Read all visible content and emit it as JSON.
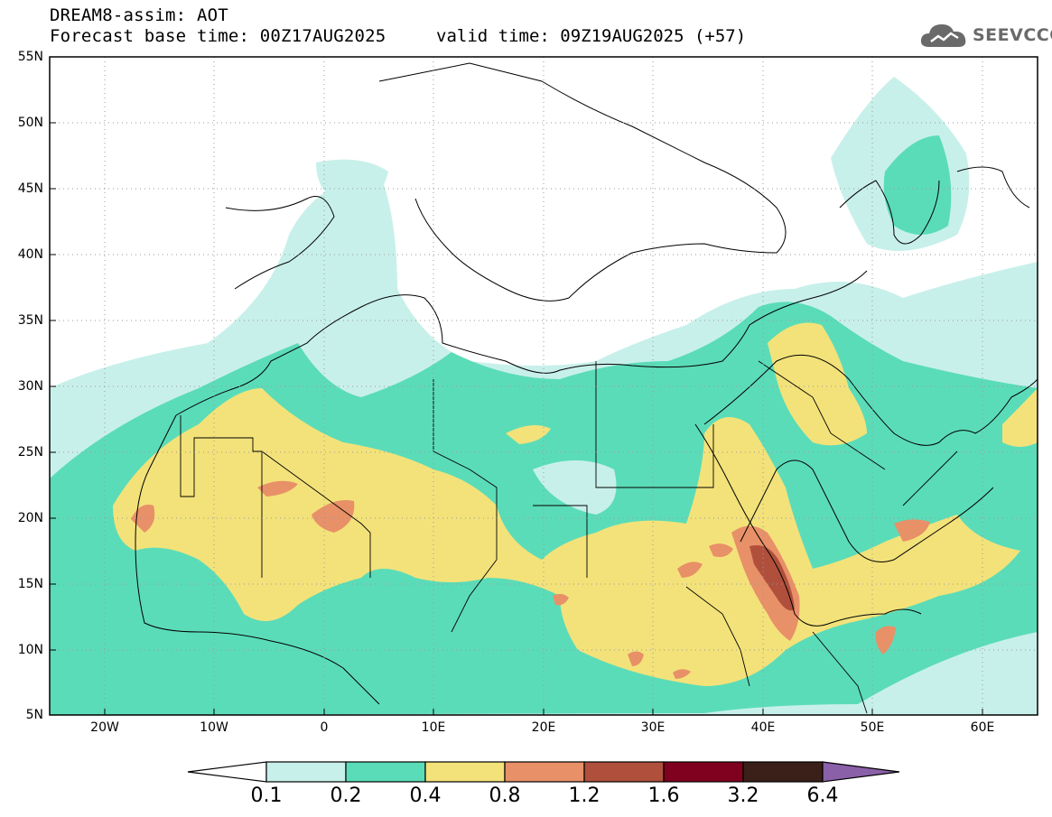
{
  "header": {
    "title": "DREAM8-assim: AOT",
    "base_time": "Forecast base time: 00Z17AUG2025",
    "valid_time": "valid time: 09Z19AUG2025 (+57)",
    "logo_text": "SEEVCCC"
  },
  "map": {
    "lon_range": [
      -25,
      65
    ],
    "lat_range": [
      5,
      55
    ],
    "lat_labels": [
      "55N",
      "50N",
      "45N",
      "40N",
      "35N",
      "30N",
      "25N",
      "20N",
      "15N",
      "10N",
      "5N"
    ],
    "lon_labels": [
      "20W",
      "10W",
      "0",
      "10E",
      "20E",
      "30E",
      "40E",
      "50E",
      "60E"
    ],
    "grid": "dotted"
  },
  "colorbar": {
    "levels": [
      "0.1",
      "0.2",
      "0.4",
      "0.8",
      "1.2",
      "1.6",
      "3.2",
      "6.4"
    ],
    "colors": [
      "#c8f0ea",
      "#5bdcb8",
      "#f3e27a",
      "#e89068",
      "#b0503c",
      "#800020",
      "#3a2018",
      "#8a60a8"
    ],
    "underflow_color": "#ffffff"
  },
  "colors": {
    "aot_0_1": "#c8f0ea",
    "aot_0_2": "#5bdcb8",
    "aot_0_4": "#f3e27a",
    "aot_0_8": "#e89068",
    "aot_1_2": "#b0503c",
    "coastline": "#000000",
    "logo": "#6a6a6a"
  }
}
